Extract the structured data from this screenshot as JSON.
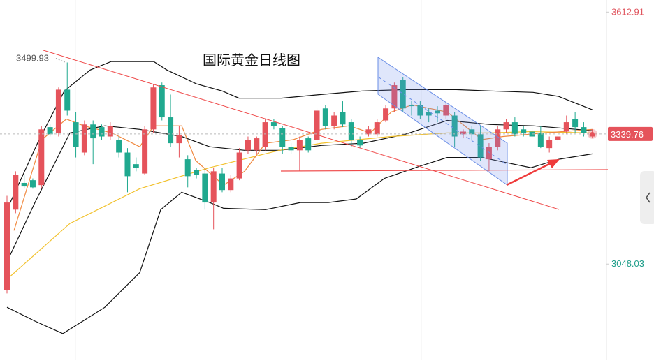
{
  "chart_data": {
    "type": "candlestick",
    "title": "国际黄金日线图",
    "ylim": [
      2834,
      3640
    ],
    "yticks": [
      3612.91,
      3048.03
    ],
    "ytick_colors": [
      "#e0555e",
      "#1f9e8a"
    ],
    "up_color": "#e5535b",
    "down_color": "#20a98f",
    "candles": {
      "open": [
        2990,
        3170,
        3230,
        3236,
        3225,
        3355,
        3342,
        3439,
        3366,
        3298,
        3361,
        3355,
        3334,
        3327,
        3298,
        3272,
        3251,
        3350,
        3449,
        3377,
        3319,
        3283,
        3259,
        3251,
        3186,
        3251,
        3214,
        3240,
        3303,
        3303,
        3311,
        3366,
        3353,
        3311,
        3303,
        3330,
        3327,
        3397,
        3358,
        3389,
        3366,
        3327,
        3339,
        3339,
        3370,
        3397,
        3460,
        3405,
        3405,
        3389,
        3392,
        3381,
        3381,
        3339,
        3350,
        3339,
        3283,
        3311,
        3350,
        3366,
        3350,
        3345,
        3342,
        3308,
        3327,
        3345,
        3373,
        3355,
        3334
      ],
      "high": [
        3201,
        3256,
        3248,
        3240,
        3358,
        3361,
        3444,
        3499.93,
        3389,
        3370,
        3370,
        3361,
        3366,
        3334,
        3308,
        3287,
        3358,
        3452,
        3455,
        3428,
        3358,
        3292,
        3264,
        3264,
        3264,
        3264,
        3248,
        3308,
        3334,
        3334,
        3373,
        3373,
        3358,
        3319,
        3334,
        3334,
        3397,
        3405,
        3389,
        3413,
        3373,
        3334,
        3358,
        3373,
        3405,
        3455,
        3467,
        3413,
        3413,
        3397,
        3402,
        3413,
        3389,
        3350,
        3358,
        3358,
        3319,
        3358,
        3373,
        3377,
        3358,
        3355,
        3358,
        3334,
        3339,
        3381,
        3389,
        3366,
        3350
      ],
      "low": [
        2982,
        3162,
        3217,
        3217,
        3217,
        3334,
        3334,
        3381,
        3287,
        3292,
        3272,
        3327,
        3327,
        3287,
        3209,
        3256,
        3248,
        3342,
        3370,
        3311,
        3287,
        3220,
        3240,
        3170,
        3126,
        3209,
        3209,
        3236,
        3295,
        3295,
        3303,
        3350,
        3295,
        3295,
        3256,
        3298,
        3319,
        3350,
        3350,
        3355,
        3311,
        3308,
        3334,
        3334,
        3366,
        3389,
        3389,
        3381,
        3373,
        3366,
        3366,
        3373,
        3311,
        3330,
        3327,
        3280,
        3256,
        3303,
        3342,
        3334,
        3334,
        3330,
        3308,
        3298,
        3319,
        3339,
        3342,
        3334,
        3330
      ],
      "close": [
        3186,
        3248,
        3222,
        3220,
        3350,
        3339,
        3439,
        3392,
        3311,
        3361,
        3330,
        3334,
        3358,
        3298,
        3245,
        3264,
        3350,
        3444,
        3377,
        3319,
        3337,
        3245,
        3248,
        3186,
        3256,
        3214,
        3240,
        3298,
        3327,
        3330,
        3366,
        3358,
        3311,
        3303,
        3327,
        3303,
        3392,
        3358,
        3381,
        3361,
        3327,
        3314,
        3350,
        3366,
        3397,
        3449,
        3397,
        3402,
        3381,
        3381,
        3386,
        3405,
        3334,
        3345,
        3339,
        3287,
        3311,
        3350,
        3366,
        3339,
        3342,
        3334,
        3311,
        3327,
        3334,
        3366,
        3355,
        3342,
        3339.76
      ]
    },
    "overlays": [
      {
        "color": "#111111",
        "x": [
          0,
          3.73,
          6.66,
          9.66,
          12.09,
          17.05,
          18.59,
          22,
          25,
          26.95,
          31.9,
          36.36,
          41.3,
          46.27,
          52.19,
          56.17,
          61.12,
          64.04,
          68
        ],
        "values": [
          3170,
          3327,
          3436,
          3483,
          3502,
          3502,
          3483,
          3452,
          3436,
          3420,
          3420,
          3428,
          3436,
          3439,
          3439,
          3436,
          3433,
          3424,
          3394
        ]
      },
      {
        "color": "#111111",
        "x": [
          0,
          3.25,
          7.31,
          11.36,
          15.42,
          20.29,
          23.54,
          27.6,
          31.66,
          36.53,
          41.4,
          46.27,
          51.14,
          56.17,
          61.12,
          68
        ],
        "values": [
          3053,
          3186,
          3342,
          3358,
          3350,
          3334,
          3311,
          3303,
          3303,
          3314,
          3319,
          3339,
          3370,
          3361,
          3358,
          3347
        ]
      },
      {
        "color": "#111111",
        "x": [
          0,
          3.25,
          6.49,
          11.36,
          15.42,
          17.86,
          20.29,
          23.54,
          25.16,
          30.03,
          34.09,
          37.34,
          40.58,
          43.83,
          47.89,
          51.14,
          55.19,
          57.63,
          60.88,
          64.12,
          68
        ],
        "values": [
          2951,
          2920,
          2892,
          2951,
          3029,
          3170,
          3209,
          3186,
          3173,
          3170,
          3186,
          3186,
          3194,
          3240,
          3267,
          3287,
          3287,
          3277,
          3264,
          3283,
          3295
        ]
      },
      {
        "color": "#f2c230",
        "x": [
          0,
          7.31,
          15.42,
          23.54,
          31.66,
          36.53,
          44.64,
          51.14,
          56.01,
          60.88,
          68
        ],
        "values": [
          3014,
          3139,
          3217,
          3264,
          3303,
          3319,
          3334,
          3342,
          3342,
          3345,
          3342
        ]
      },
      {
        "color": "#f0883e",
        "x": [
          0.81,
          4.06,
          6.9,
          8.93,
          12.18,
          15.42,
          17.05,
          20.29,
          21.92,
          25.16,
          27.6,
          30.03,
          33.28,
          36.53,
          39.77,
          42.21,
          44.64,
          47.08,
          51.14,
          55.19,
          57.63,
          62.5,
          68
        ],
        "values": [
          3123,
          3327,
          3373,
          3358,
          3342,
          3311,
          3358,
          3358,
          3280,
          3225,
          3256,
          3319,
          3327,
          3350,
          3358,
          3342,
          3389,
          3405,
          3389,
          3327,
          3334,
          3342,
          3350
        ]
      }
    ],
    "last_price_line": true
  }
}
